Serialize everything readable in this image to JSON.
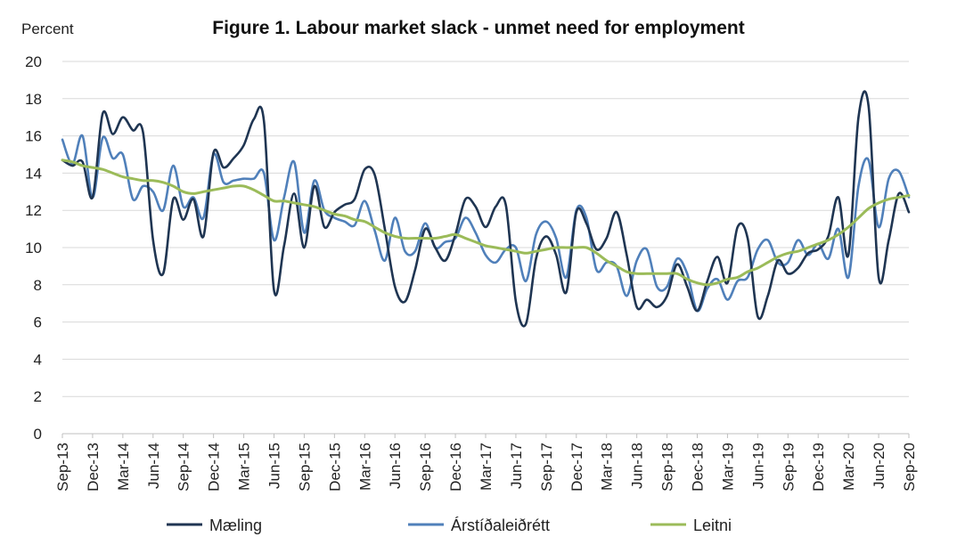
{
  "chart_data": {
    "type": "line",
    "title": "Figure 1. Labour market slack - unmet need for employment",
    "ylabel": "Percent",
    "xlabel": "",
    "ylim": [
      0,
      20
    ],
    "yticks": [
      0,
      2,
      4,
      6,
      8,
      10,
      12,
      14,
      16,
      18,
      20
    ],
    "grid": true,
    "legend_position": "bottom",
    "x_tick_labels": [
      "Sep-13",
      "Dec-13",
      "Mar-14",
      "Jun-14",
      "Sep-14",
      "Dec-14",
      "Mar-15",
      "Jun-15",
      "Sep-15",
      "Dec-15",
      "Mar-16",
      "Jun-16",
      "Sep-16",
      "Dec-16",
      "Mar-17",
      "Jun-17",
      "Sep-17",
      "Dec-17",
      "Mar-18",
      "Jun-18",
      "Sep-18",
      "Dec-18",
      "Mar-19",
      "Jun-19",
      "Sep-19",
      "Dec-19",
      "Mar-20",
      "Jun-20",
      "Sep-20"
    ],
    "x": [
      "Sep-13",
      "Oct-13",
      "Nov-13",
      "Dec-13",
      "Jan-14",
      "Feb-14",
      "Mar-14",
      "Apr-14",
      "May-14",
      "Jun-14",
      "Jul-14",
      "Aug-14",
      "Sep-14",
      "Oct-14",
      "Nov-14",
      "Dec-14",
      "Jan-15",
      "Feb-15",
      "Mar-15",
      "Apr-15",
      "May-15",
      "Jun-15",
      "Jul-15",
      "Aug-15",
      "Sep-15",
      "Oct-15",
      "Nov-15",
      "Dec-15",
      "Jan-16",
      "Feb-16",
      "Mar-16",
      "Apr-16",
      "May-16",
      "Jun-16",
      "Jul-16",
      "Aug-16",
      "Sep-16",
      "Oct-16",
      "Nov-16",
      "Dec-16",
      "Jan-17",
      "Feb-17",
      "Mar-17",
      "Apr-17",
      "May-17",
      "Jun-17",
      "Jul-17",
      "Aug-17",
      "Sep-17",
      "Oct-17",
      "Nov-17",
      "Dec-17",
      "Jan-18",
      "Feb-18",
      "Mar-18",
      "Apr-18",
      "May-18",
      "Jun-18",
      "Jul-18",
      "Aug-18",
      "Sep-18",
      "Oct-18",
      "Nov-18",
      "Dec-18",
      "Jan-19",
      "Feb-19",
      "Mar-19",
      "Apr-19",
      "May-19",
      "Jun-19",
      "Jul-19",
      "Aug-19",
      "Sep-19",
      "Oct-19",
      "Nov-19",
      "Dec-19",
      "Jan-20",
      "Feb-20",
      "Mar-20",
      "Apr-20",
      "May-20",
      "Jun-20",
      "Jul-20",
      "Aug-20",
      "Sep-20"
    ],
    "series": [
      {
        "name": "Mæling",
        "color": "#1f3552",
        "values": [
          14.7,
          14.4,
          14.6,
          12.7,
          17.2,
          16.1,
          17.0,
          16.3,
          16.2,
          10.4,
          8.6,
          12.6,
          11.5,
          12.6,
          10.6,
          15.1,
          14.3,
          14.8,
          15.5,
          16.9,
          16.8,
          7.7,
          10.1,
          12.9,
          10.0,
          13.3,
          11.1,
          11.9,
          12.3,
          12.6,
          14.2,
          13.9,
          11.0,
          7.9,
          7.1,
          8.8,
          11.0,
          10.0,
          9.3,
          10.7,
          12.6,
          12.2,
          11.1,
          12.2,
          12.3,
          7.1,
          5.9,
          9.4,
          10.6,
          9.6,
          7.6,
          11.9,
          11.3,
          9.9,
          10.5,
          11.9,
          9.6,
          6.8,
          7.2,
          6.8,
          7.4,
          9.1,
          7.9,
          6.6,
          8.2,
          9.5,
          8.1,
          11.1,
          10.5,
          6.3,
          7.4,
          9.3,
          8.6,
          8.9,
          9.7,
          9.9,
          10.6,
          12.7,
          9.6,
          17.0,
          17.6,
          8.4,
          10.4,
          12.9,
          11.9
        ]
      },
      {
        "name": "Árstíðaleiðrétt",
        "color": "#5080ba",
        "values": [
          15.8,
          14.5,
          16.0,
          12.7,
          15.9,
          14.8,
          15.0,
          12.6,
          13.3,
          13.0,
          12.0,
          14.4,
          12.2,
          12.7,
          11.6,
          15.0,
          13.5,
          13.6,
          13.7,
          13.7,
          14.0,
          10.4,
          12.7,
          14.6,
          10.8,
          13.6,
          12.0,
          11.6,
          11.4,
          11.2,
          12.5,
          10.9,
          9.3,
          11.6,
          9.8,
          9.8,
          11.3,
          10.0,
          10.3,
          10.5,
          11.6,
          10.8,
          9.6,
          9.2,
          9.9,
          10.0,
          8.2,
          10.7,
          11.4,
          10.5,
          8.4,
          12.0,
          11.6,
          8.8,
          9.2,
          9.0,
          7.4,
          9.3,
          9.9,
          7.9,
          7.9,
          9.4,
          8.6,
          6.6,
          7.8,
          8.3,
          7.2,
          8.2,
          8.4,
          9.9,
          10.4,
          9.2,
          9.2,
          10.4,
          9.6,
          10.2,
          9.4,
          11.0,
          8.4,
          13.3,
          14.7,
          11.1,
          13.7,
          14.1,
          12.7
        ]
      },
      {
        "name": "Leitni",
        "color": "#9bbb59",
        "values": [
          14.7,
          14.6,
          14.4,
          14.3,
          14.2,
          14.0,
          13.8,
          13.7,
          13.6,
          13.6,
          13.5,
          13.3,
          13.0,
          12.9,
          13.0,
          13.1,
          13.2,
          13.3,
          13.3,
          13.1,
          12.8,
          12.5,
          12.5,
          12.4,
          12.3,
          12.2,
          12.0,
          11.8,
          11.7,
          11.5,
          11.4,
          11.1,
          10.8,
          10.6,
          10.5,
          10.5,
          10.5,
          10.5,
          10.6,
          10.7,
          10.5,
          10.3,
          10.1,
          10.0,
          9.9,
          9.8,
          9.7,
          9.8,
          9.9,
          10.0,
          10.0,
          10.0,
          10.0,
          9.7,
          9.3,
          9.0,
          8.7,
          8.6,
          8.6,
          8.6,
          8.6,
          8.6,
          8.3,
          8.1,
          8.0,
          8.1,
          8.3,
          8.4,
          8.7,
          8.9,
          9.2,
          9.5,
          9.7,
          9.8,
          10.0,
          10.2,
          10.4,
          10.7,
          11.1,
          11.6,
          12.1,
          12.4,
          12.6,
          12.7,
          12.8
        ]
      }
    ]
  }
}
